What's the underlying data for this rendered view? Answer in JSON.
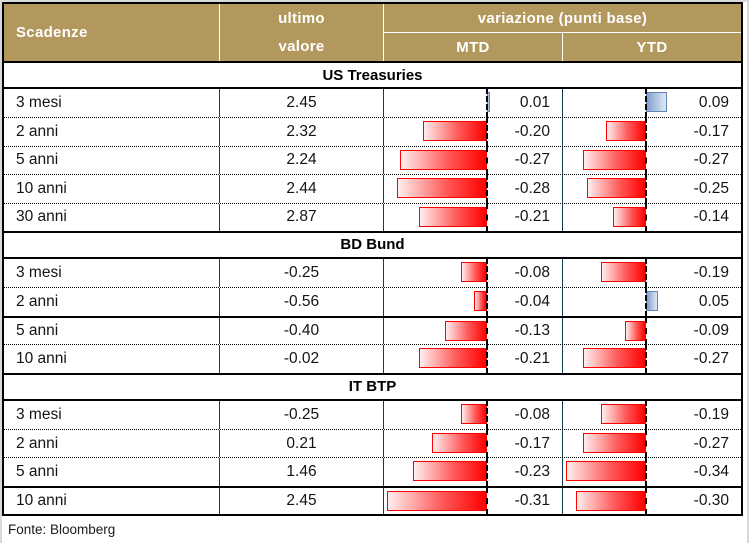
{
  "header": {
    "col_scadenze": "Scadenze",
    "col_ultimo_line1": "ultimo",
    "col_ultimo_line2": "valore",
    "col_variazione": "variazione (punti base)",
    "col_mtd": "MTD",
    "col_ytd": "YTD"
  },
  "footer": {
    "source": "Fonte: Bloomberg"
  },
  "colors": {
    "header_bg": "#B3985E",
    "negative_bar": "#FF0000",
    "positive_bar": "#7F9FCC",
    "grid_line": "#123C56"
  },
  "chart_data": {
    "type": "table",
    "title": "Scadenze - ultimo valore e variazione (punti base)",
    "columns": [
      "Scadenze",
      "ultimo valore",
      "variazione (punti base) MTD",
      "variazione (punti base) YTD"
    ],
    "bar_style": "in-cell data bars: negative red (left of dashed zero axis), positive blue (right of dashed zero axis)",
    "sections": [
      {
        "title": "US Treasuries",
        "rows": [
          {
            "label": "3 mesi",
            "last": 2.45,
            "mtd": 0.01,
            "ytd": 0.09,
            "sep": "none"
          },
          {
            "label": "2 anni",
            "last": 2.32,
            "mtd": -0.2,
            "ytd": -0.17,
            "sep": "dotted"
          },
          {
            "label": "5 anni",
            "last": 2.24,
            "mtd": -0.27,
            "ytd": -0.27,
            "sep": "dotted"
          },
          {
            "label": "10 anni",
            "last": 2.44,
            "mtd": -0.28,
            "ytd": -0.25,
            "sep": "dotted"
          },
          {
            "label": "30 anni",
            "last": 2.87,
            "mtd": -0.21,
            "ytd": -0.14,
            "sep": "dotted"
          }
        ]
      },
      {
        "title": "BD Bund",
        "rows": [
          {
            "label": "3 mesi",
            "last": -0.25,
            "mtd": -0.08,
            "ytd": -0.19,
            "sep": "none"
          },
          {
            "label": "2 anni",
            "last": -0.56,
            "mtd": -0.04,
            "ytd": 0.05,
            "sep": "dotted"
          },
          {
            "label": "5 anni",
            "last": -0.4,
            "mtd": -0.13,
            "ytd": -0.09,
            "sep": "solid"
          },
          {
            "label": "10 anni",
            "last": -0.02,
            "mtd": -0.21,
            "ytd": -0.27,
            "sep": "dotted"
          }
        ]
      },
      {
        "title": "IT BTP",
        "rows": [
          {
            "label": "3 mesi",
            "last": -0.25,
            "mtd": -0.08,
            "ytd": -0.19,
            "sep": "none"
          },
          {
            "label": "2 anni",
            "last": 0.21,
            "mtd": -0.17,
            "ytd": -0.27,
            "sep": "dotted"
          },
          {
            "label": "5 anni",
            "last": 1.46,
            "mtd": -0.23,
            "ytd": -0.34,
            "sep": "dotted"
          },
          {
            "label": "10 anni",
            "last": 2.45,
            "mtd": -0.31,
            "ytd": -0.3,
            "sep": "solid"
          }
        ]
      }
    ]
  }
}
